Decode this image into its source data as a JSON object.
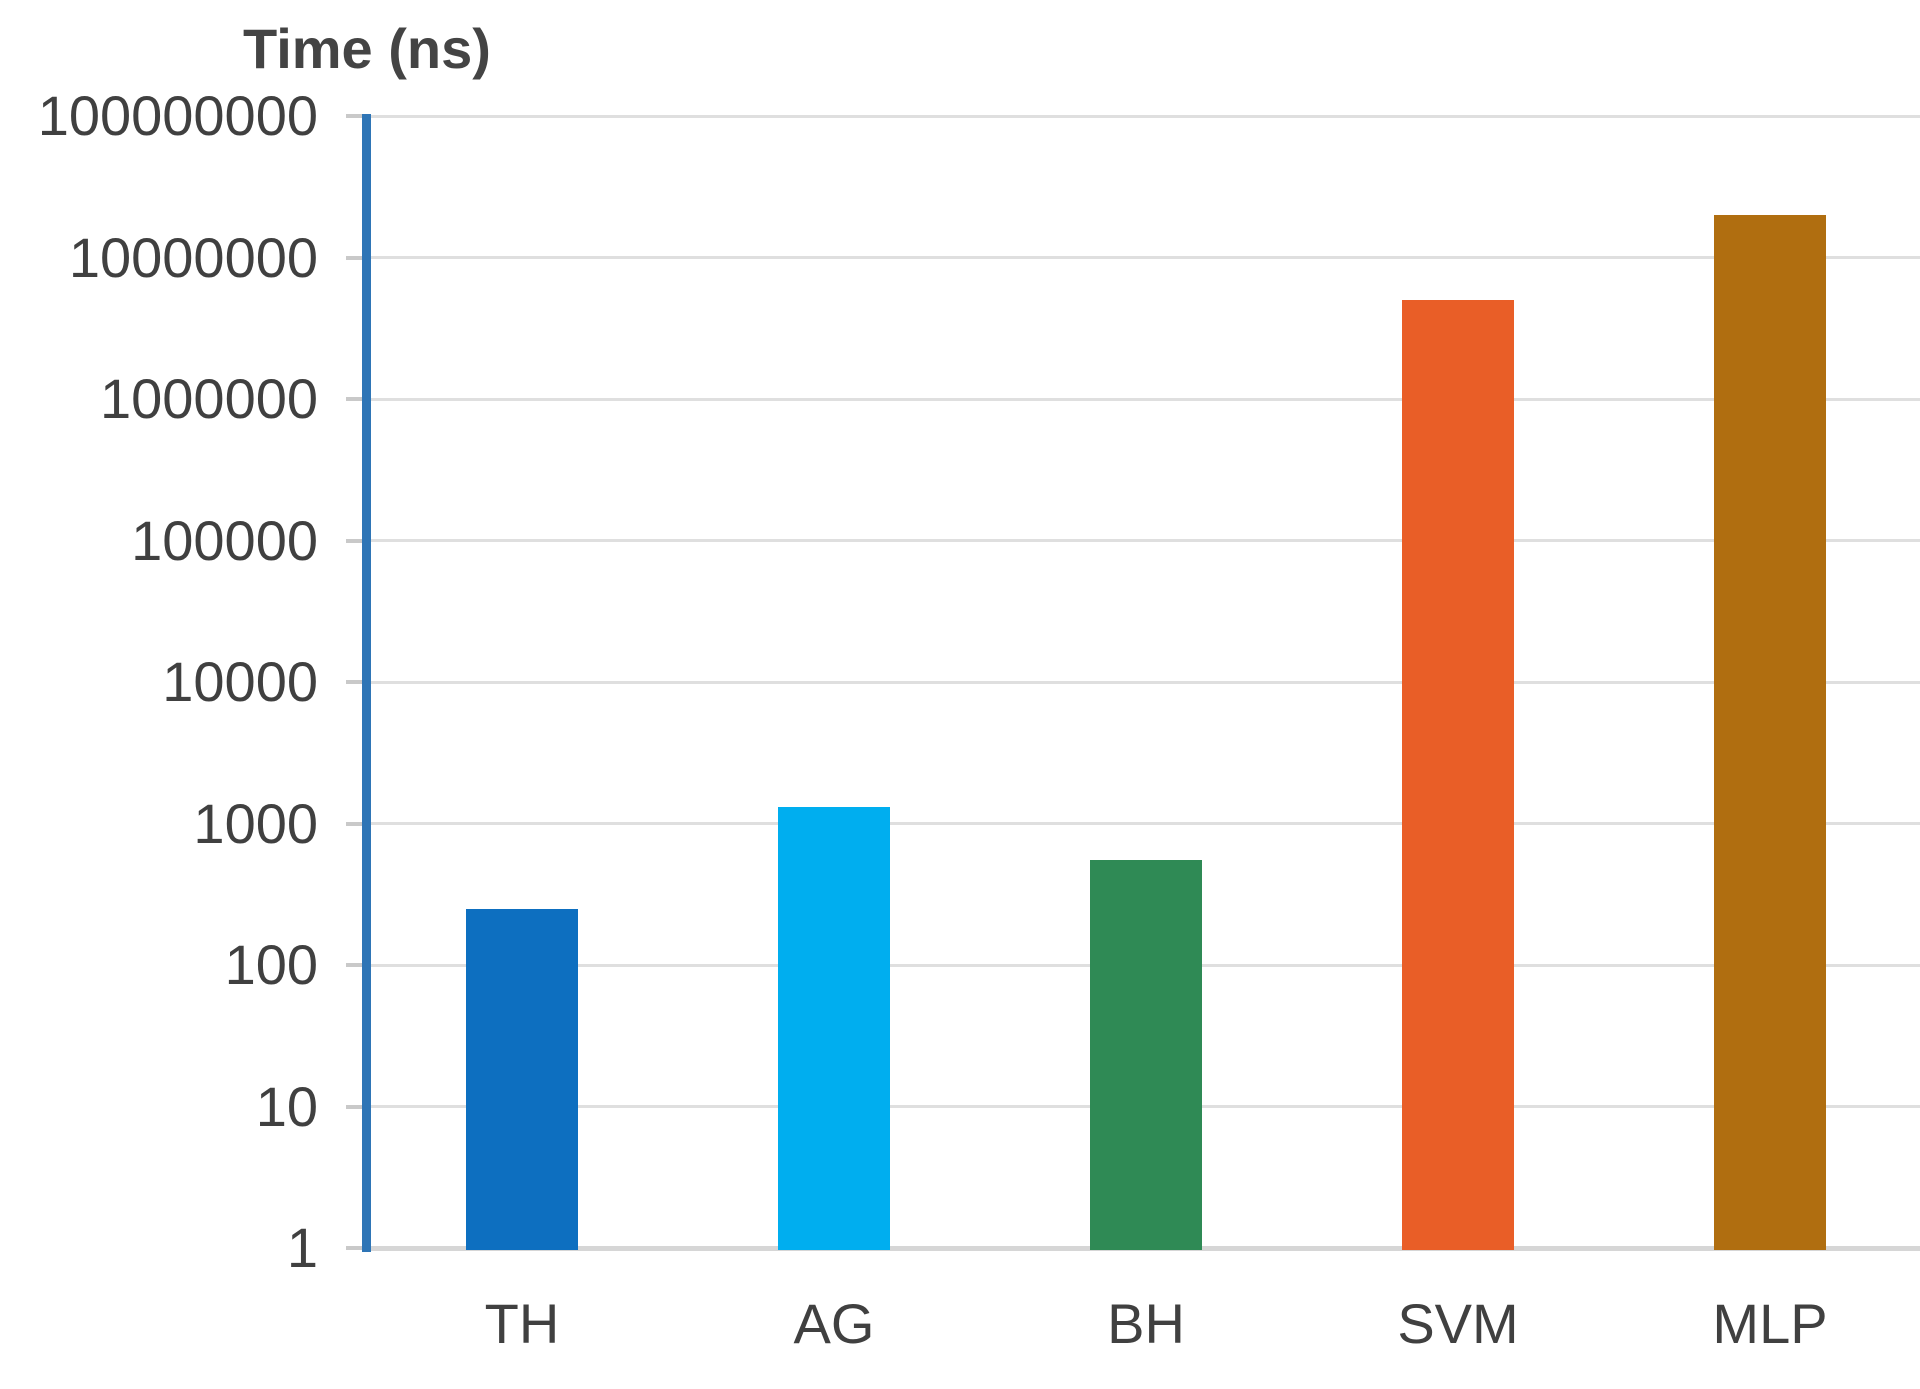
{
  "chart_data": {
    "type": "bar",
    "title": "Time (ns)",
    "xlabel": "",
    "ylabel": "Time (ns)",
    "yscale": "log",
    "ylim": [
      1,
      100000000
    ],
    "grid": "horizontal",
    "legend": "none",
    "categories": [
      "TH",
      "AG",
      "BH",
      "SVM",
      "MLP"
    ],
    "values": [
      250,
      1300,
      550,
      5000000,
      20000000
    ],
    "bar_colors": [
      "#0d6fc0",
      "#00aeef",
      "#2f8a55",
      "#e95e27",
      "#b06e10"
    ],
    "ytick_labels": [
      "100000000",
      "10000000",
      "1000000",
      "100000",
      "10000",
      "1000",
      "100",
      "10",
      "1"
    ],
    "axis_color": "#2e75b6",
    "gridline_color": "#dfdfdf",
    "text_color": "#404040"
  }
}
